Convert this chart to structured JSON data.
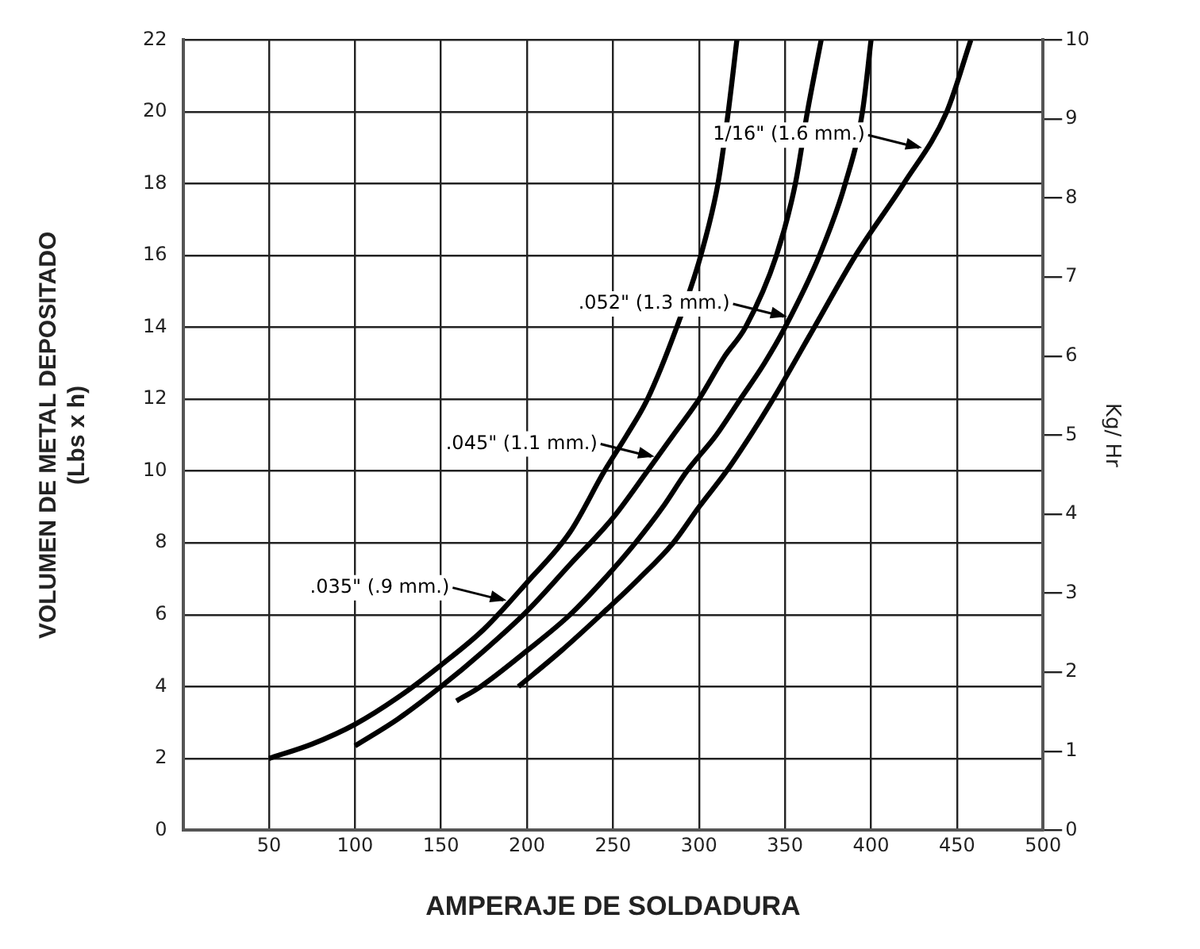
{
  "chart_data": {
    "type": "line",
    "xlabel": "AMPERAJE DE SOLDADURA",
    "ylabel": "VOLUMEN DE METAL DEPOSITADO\n(Lbs x h)",
    "y2label": "Kg/ Hr",
    "xlim": [
      0,
      500
    ],
    "xticks": [
      50,
      100,
      150,
      200,
      250,
      300,
      350,
      400,
      450,
      500
    ],
    "ylim": [
      0,
      22
    ],
    "yticks": [
      0,
      2,
      4,
      6,
      8,
      10,
      12,
      14,
      16,
      18,
      20,
      22
    ],
    "y2lim": [
      0,
      10
    ],
    "y2ticks": [
      0,
      1,
      2,
      3,
      4,
      5,
      6,
      7,
      8,
      9,
      10
    ],
    "grid": true,
    "legend": false,
    "marker": "none",
    "line_style": "solid",
    "series": [
      {
        "color": "#000000",
        "x": [
          50,
          75,
          100,
          125,
          150,
          175,
          200,
          225,
          245,
          258,
          270,
          287,
          301,
          311,
          317,
          322
        ],
        "values": [
          2,
          2.4,
          2.95,
          3.7,
          4.6,
          5.6,
          6.9,
          8.3,
          10,
          11,
          12,
          14,
          16,
          18,
          20,
          22
        ]
      },
      {
        "color": "#000000",
        "x": [
          100,
          125,
          150,
          175,
          200,
          225,
          250,
          270,
          285,
          300,
          315,
          327,
          345,
          356,
          363,
          371
        ],
        "values": [
          2.35,
          3.1,
          4,
          5,
          6.1,
          7.4,
          8.7,
          10,
          11,
          12,
          13.2,
          14,
          16,
          18,
          20,
          22
        ]
      },
      {
        "color": "#000000",
        "x": [
          159,
          173,
          200,
          225,
          245,
          263,
          279,
          293,
          310,
          324,
          338,
          350,
          370,
          385,
          395,
          400
        ],
        "values": [
          3.6,
          4,
          5,
          6,
          7,
          8,
          9,
          10,
          11,
          12,
          13,
          14,
          16,
          18,
          20,
          22
        ]
      },
      {
        "color": "#000000",
        "x": [
          195,
          220,
          243,
          265,
          285,
          300,
          316,
          330,
          343,
          367,
          391,
          419,
          444,
          458
        ],
        "values": [
          4,
          5,
          6,
          7,
          8,
          9,
          10,
          11,
          12,
          14,
          16,
          18,
          20,
          22
        ]
      }
    ],
    "annotations": [
      {
        "text": ".035\" (.9 mm.)",
        "x": 190,
        "y": 6.4
      },
      {
        "text": ".045\" (1.1 mm.)",
        "x": 276,
        "y": 10.4
      },
      {
        "text": ".052\" (1.3 mm.)",
        "x": 353,
        "y": 14.3
      },
      {
        "text": "1/16\" (1.6 mm.)",
        "x": 431.5,
        "y": 19
      }
    ]
  }
}
